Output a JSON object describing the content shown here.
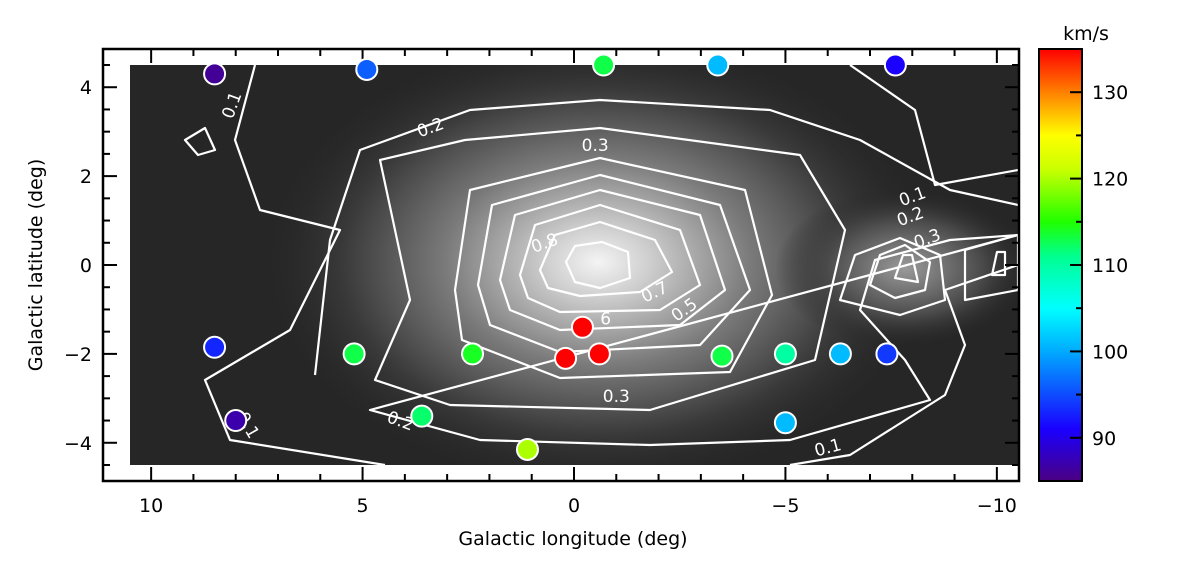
{
  "chart_data": {
    "type": "heatmap",
    "xlabel": "Galactic longitude (deg)",
    "ylabel": "Galactic latitude (deg)",
    "xlim": [
      10.5,
      -10.5
    ],
    "ylim": [
      -4.5,
      4.5
    ],
    "x_ticks": [
      10,
      5,
      0,
      -5,
      -10
    ],
    "y_ticks": [
      4,
      2,
      0,
      -2,
      -4
    ],
    "x_tick_labels": [
      "10",
      "5",
      "0",
      "−5",
      "−10"
    ],
    "y_tick_labels": [
      "4",
      "2",
      "0",
      "−2",
      "−4"
    ],
    "background": "grayscale intensity map, peak at (0, 0)",
    "contour_levels": [
      0.1,
      0.2,
      0.3,
      0.4,
      0.5,
      0.6,
      0.7,
      0.8
    ],
    "contour_labels": [
      {
        "text": "0.1",
        "l": 8.1,
        "b": 3.6,
        "rotate": -70
      },
      {
        "text": "0.2",
        "l": 3.4,
        "b": 3.1,
        "rotate": -20
      },
      {
        "text": "0.3",
        "l": -0.5,
        "b": 2.7,
        "rotate": 0
      },
      {
        "text": "0.8",
        "l": 0.7,
        "b": 0.5,
        "rotate": -20
      },
      {
        "text": "0.7",
        "l": -1.9,
        "b": -0.6,
        "rotate": -25
      },
      {
        "text": "6",
        "l": -0.75,
        "b": -1.2,
        "rotate": 0
      },
      {
        "text": "0.5",
        "l": -2.6,
        "b": -1.0,
        "rotate": -35
      },
      {
        "text": "0.3",
        "l": -1.0,
        "b": -2.95,
        "rotate": 0
      },
      {
        "text": "0.2",
        "l": 4.1,
        "b": -3.5,
        "rotate": 20
      },
      {
        "text": "0.1",
        "l": 7.7,
        "b": -3.6,
        "rotate": 60
      },
      {
        "text": "0.1",
        "l": -6.0,
        "b": -4.1,
        "rotate": -15
      },
      {
        "text": "0.1",
        "l": -8.0,
        "b": 1.55,
        "rotate": -20
      },
      {
        "text": "0.2",
        "l": -7.95,
        "b": 1.1,
        "rotate": -20
      },
      {
        "text": "0.3",
        "l": -8.35,
        "b": 0.6,
        "rotate": -20
      }
    ],
    "points": [
      {
        "l": 8.5,
        "b": 4.3,
        "v": 86
      },
      {
        "l": 4.9,
        "b": 4.4,
        "v": 96
      },
      {
        "l": -0.7,
        "b": 4.5,
        "v": 113
      },
      {
        "l": -3.4,
        "b": 4.5,
        "v": 101
      },
      {
        "l": -7.6,
        "b": 4.5,
        "v": 91
      },
      {
        "l": 8.5,
        "b": -1.85,
        "v": 93
      },
      {
        "l": 5.2,
        "b": -2.0,
        "v": 113
      },
      {
        "l": 2.4,
        "b": -2.0,
        "v": 114
      },
      {
        "l": -0.2,
        "b": -1.4,
        "v": 135
      },
      {
        "l": 0.2,
        "b": -2.1,
        "v": 135
      },
      {
        "l": -0.6,
        "b": -2.0,
        "v": 135
      },
      {
        "l": -3.5,
        "b": -2.05,
        "v": 113
      },
      {
        "l": -5.0,
        "b": -2.0,
        "v": 110
      },
      {
        "l": -6.3,
        "b": -2.0,
        "v": 101
      },
      {
        "l": -7.4,
        "b": -2.0,
        "v": 94
      },
      {
        "l": 8.0,
        "b": -3.5,
        "v": 87
      },
      {
        "l": 3.6,
        "b": -3.4,
        "v": 112
      },
      {
        "l": -5.0,
        "b": -3.55,
        "v": 101
      },
      {
        "l": 1.1,
        "b": -4.15,
        "v": 120
      }
    ],
    "colorbar": {
      "title": "km/s",
      "min": 85,
      "max": 135,
      "ticks": [
        90,
        100,
        110,
        120,
        130
      ],
      "tick_labels": [
        "90",
        "100",
        "110",
        "120",
        "130"
      ]
    }
  }
}
